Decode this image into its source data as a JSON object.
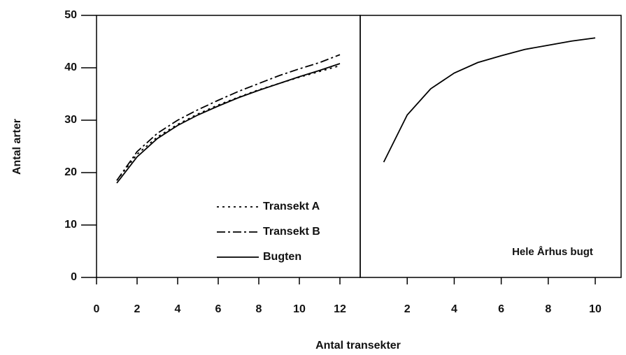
{
  "chart_data": [
    {
      "type": "line",
      "ylabel": "Antal arter",
      "xlabel": "Antal transekter",
      "xlim": [
        0,
        13
      ],
      "xticks": [
        0,
        2,
        4,
        6,
        8,
        10,
        12
      ],
      "ylim": [
        0,
        50
      ],
      "yticks": [
        0,
        10,
        20,
        30,
        40,
        50
      ],
      "legend": "lower right",
      "x": [
        1,
        2,
        3,
        4,
        5,
        6,
        7,
        8,
        9,
        10,
        11,
        12
      ],
      "series": [
        {
          "name": "Transekt A",
          "color": "#000000",
          "style": "dotted",
          "values": [
            18.5,
            23.5,
            26.8,
            29.2,
            31.2,
            32.9,
            34.4,
            35.8,
            37.0,
            38.2,
            39.3,
            40.4
          ]
        },
        {
          "name": "Transekt B",
          "color": "#000000",
          "style": "dashdot",
          "values": [
            18.5,
            24.0,
            27.5,
            30.0,
            32.0,
            33.8,
            35.5,
            37.0,
            38.5,
            39.8,
            41.0,
            42.5
          ]
        },
        {
          "name": "Bugten",
          "color": "#000000",
          "style": "solid",
          "values": [
            18.0,
            23.0,
            26.5,
            29.0,
            31.0,
            32.7,
            34.3,
            35.7,
            37.0,
            38.3,
            39.5,
            40.8
          ]
        }
      ]
    },
    {
      "type": "line",
      "annotation": "Hele Århus bugt",
      "xlim": [
        0,
        11.1
      ],
      "xticks": [
        2,
        4,
        6,
        8,
        10
      ],
      "ylim": [
        0,
        50
      ],
      "x": [
        1,
        2,
        3,
        4,
        5,
        6,
        7,
        8,
        9,
        10
      ],
      "series": [
        {
          "color": "#000000",
          "style": "solid",
          "values": [
            22.0,
            31.0,
            36.0,
            39.0,
            41.0,
            42.3,
            43.5,
            44.3,
            45.1,
            45.7
          ]
        }
      ]
    }
  ]
}
